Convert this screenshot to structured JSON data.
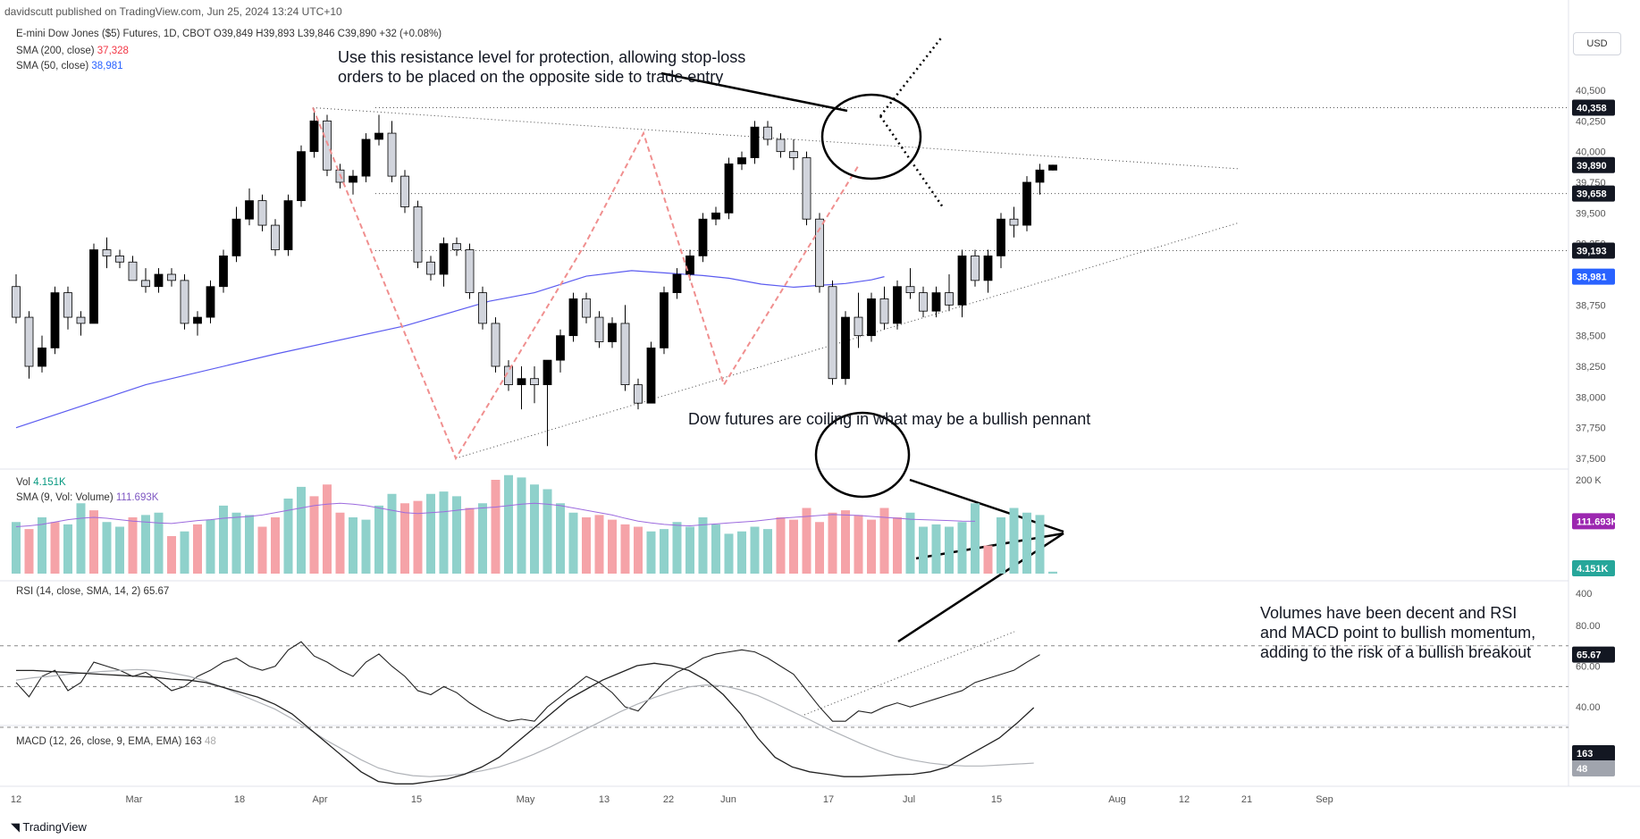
{
  "header": {
    "publisher_line": "davidscutt published on TradingView.com, Jun 25, 2024 13:24 UTC+10"
  },
  "legend": {
    "symbol": "E-mini Dow Jones ($5) Futures, 1D, CBOT",
    "ohlc": "O39,849 H39,893 L39,846 C39,890 +32 (+0.08%)",
    "sma200_label": "SMA (200, close)",
    "sma200_value": "37,328",
    "sma50_label": "SMA (50, close)",
    "sma50_value": "38,981",
    "vol_label": "Vol",
    "vol_value": "4.151K",
    "vol_sma_label": "SMA (9, Vol: Volume)",
    "vol_sma_value": "111.693K",
    "rsi_label": "RSI (14, close, SMA, 14, 2)",
    "rsi_value": "65.67",
    "macd_label": "MACD (12, 26, close, 9, EMA, EMA)",
    "macd_value": "163",
    "macd_signal_value": "48"
  },
  "currency": "USD",
  "branding": "TradingView",
  "annotations": {
    "resistance": [
      "Use this resistance level for protection, allowing stop-loss",
      "orders to be placed on the opposite side to trade entry"
    ],
    "pennant": "Dow futures are coiling in what may be a bullish pennant",
    "momentum": [
      "Volumes have been decent and RSI",
      "and MACD point to bullish momentum,",
      "adding to the risk of a bullish breakout"
    ]
  },
  "colors": {
    "up": "#000000",
    "down_fill": "#d1d4dc",
    "sma50": "#5b5bf0",
    "vol_up": "#8fd1cb",
    "vol_down": "#f5a3a8",
    "vol_sma": "#9c6ade",
    "dashed_pattern": "#f08f8f",
    "badge_dark": "#131722",
    "badge_blue": "#2962ff",
    "badge_purple": "#9c27b0",
    "badge_teal": "#26a69a",
    "badge_gray": "#a0a4ad"
  },
  "chart_data": {
    "type": "candlestick",
    "title": "E-mini Dow Jones ($5) Futures, 1D, CBOT",
    "x_ticks": [
      "12",
      "Mar",
      "18",
      "Apr",
      "15",
      "May",
      "13",
      "22",
      "Jun",
      "17",
      "Jul",
      "15",
      "Aug",
      "12",
      "21",
      "Sep"
    ],
    "price_ticks": [
      "40,500",
      "40,250",
      "40,000",
      "39,750",
      "39,500",
      "39,250",
      "38,750",
      "38,500",
      "38,250",
      "38,000",
      "37,750",
      "37,500"
    ],
    "ylim": [
      37450,
      40650
    ],
    "price_labels": [
      {
        "value": 40358,
        "text": "40,358",
        "style": "dark"
      },
      {
        "value": 39890,
        "text": "39,890",
        "style": "dark"
      },
      {
        "value": 39658,
        "text": "39,658",
        "style": "dark"
      },
      {
        "value": 39193,
        "text": "39,193",
        "style": "dark"
      },
      {
        "value": 38981,
        "text": "38,981",
        "style": "blue"
      }
    ],
    "candles": [
      [
        38900,
        39000,
        38600,
        38650
      ],
      [
        38650,
        38700,
        38150,
        38250
      ],
      [
        38250,
        38500,
        38200,
        38400
      ],
      [
        38400,
        38900,
        38350,
        38850
      ],
      [
        38850,
        38900,
        38550,
        38650
      ],
      [
        38650,
        38700,
        38500,
        38600
      ],
      [
        38600,
        39250,
        38600,
        39200
      ],
      [
        39200,
        39300,
        39050,
        39150
      ],
      [
        39150,
        39200,
        39050,
        39100
      ],
      [
        39100,
        39150,
        38950,
        38950
      ],
      [
        38950,
        39050,
        38850,
        38900
      ],
      [
        38900,
        39050,
        38850,
        39000
      ],
      [
        39000,
        39050,
        38900,
        38950
      ],
      [
        38950,
        39000,
        38550,
        38600
      ],
      [
        38600,
        38700,
        38500,
        38650
      ],
      [
        38650,
        38950,
        38600,
        38900
      ],
      [
        38900,
        39200,
        38850,
        39150
      ],
      [
        39150,
        39550,
        39100,
        39450
      ],
      [
        39450,
        39700,
        39400,
        39600
      ],
      [
        39600,
        39650,
        39350,
        39400
      ],
      [
        39400,
        39450,
        39150,
        39200
      ],
      [
        39200,
        39650,
        39150,
        39600
      ],
      [
        39600,
        40050,
        39550,
        40000
      ],
      [
        40000,
        40350,
        39950,
        40250
      ],
      [
        40250,
        40300,
        39800,
        39850
      ],
      [
        39850,
        39900,
        39700,
        39750
      ],
      [
        39750,
        39850,
        39650,
        39800
      ],
      [
        39800,
        40150,
        39750,
        40100
      ],
      [
        40100,
        40300,
        40050,
        40150
      ],
      [
        40150,
        40250,
        39750,
        39800
      ],
      [
        39800,
        39850,
        39500,
        39550
      ],
      [
        39550,
        39600,
        39050,
        39100
      ],
      [
        39100,
        39150,
        38950,
        39000
      ],
      [
        39000,
        39300,
        38900,
        39250
      ],
      [
        39250,
        39300,
        39150,
        39200
      ],
      [
        39200,
        39250,
        38800,
        38850
      ],
      [
        38850,
        38900,
        38550,
        38600
      ],
      [
        38600,
        38650,
        38200,
        38250
      ],
      [
        38250,
        38300,
        38050,
        38100
      ],
      [
        38100,
        38250,
        37900,
        38150
      ],
      [
        38150,
        38250,
        37950,
        38100
      ],
      [
        38100,
        38300,
        37600,
        38300
      ],
      [
        38300,
        38550,
        38200,
        38500
      ],
      [
        38500,
        38850,
        38450,
        38800
      ],
      [
        38800,
        38850,
        38600,
        38650
      ],
      [
        38650,
        38700,
        38400,
        38450
      ],
      [
        38450,
        38650,
        38400,
        38600
      ],
      [
        38600,
        38750,
        38050,
        38100
      ],
      [
        38100,
        38150,
        37900,
        37950
      ],
      [
        37950,
        38450,
        37950,
        38400
      ],
      [
        38400,
        38900,
        38350,
        38850
      ],
      [
        38850,
        39050,
        38800,
        39000
      ],
      [
        39000,
        39200,
        38950,
        39150
      ],
      [
        39150,
        39500,
        39100,
        39450
      ],
      [
        39450,
        39550,
        39400,
        39500
      ],
      [
        39500,
        39950,
        39450,
        39900
      ],
      [
        39900,
        40000,
        39850,
        39950
      ],
      [
        39950,
        40250,
        39900,
        40200
      ],
      [
        40200,
        40250,
        40050,
        40100
      ],
      [
        40100,
        40150,
        39950,
        40000
      ],
      [
        40000,
        40100,
        39850,
        39950
      ],
      [
        39950,
        40000,
        39400,
        39450
      ],
      [
        39450,
        39500,
        38850,
        38900
      ],
      [
        38900,
        38950,
        38100,
        38150
      ],
      [
        38150,
        38700,
        38100,
        38650
      ],
      [
        38650,
        38850,
        38400,
        38500
      ],
      [
        38500,
        38850,
        38450,
        38800
      ],
      [
        38800,
        38900,
        38550,
        38600
      ],
      [
        38600,
        38950,
        38550,
        38900
      ],
      [
        38900,
        39050,
        38800,
        38850
      ],
      [
        38850,
        38900,
        38650,
        38700
      ],
      [
        38700,
        38900,
        38650,
        38850
      ],
      [
        38850,
        39000,
        38700,
        38750
      ],
      [
        38750,
        39200,
        38650,
        39150
      ],
      [
        39150,
        39200,
        38900,
        38950
      ],
      [
        38950,
        39200,
        38850,
        39150
      ],
      [
        39150,
        39500,
        39050,
        39450
      ],
      [
        39450,
        39550,
        39300,
        39400
      ],
      [
        39400,
        39800,
        39350,
        39750
      ],
      [
        39750,
        39900,
        39650,
        39850
      ],
      [
        39849,
        39893,
        39846,
        39890
      ]
    ],
    "sma50": [
      [
        0,
        37750
      ],
      [
        20,
        38100
      ],
      [
        40,
        38350
      ],
      [
        60,
        38580
      ],
      [
        73,
        38780
      ],
      [
        80,
        38850
      ],
      [
        88,
        38985
      ],
      [
        95,
        39030
      ],
      [
        100,
        39012
      ],
      [
        106,
        38990
      ],
      [
        110,
        38968
      ],
      [
        115,
        38920
      ],
      [
        120,
        38895
      ],
      [
        124,
        38910
      ],
      [
        128,
        38925
      ],
      [
        132,
        38955
      ],
      [
        134,
        38981
      ]
    ],
    "pennant_upper": {
      "from": [
        350,
        40358
      ],
      "to": [
        1386,
        39860
      ]
    },
    "pennant_lower": {
      "from": [
        510,
        37500
      ],
      "to": [
        1386,
        39420
      ]
    },
    "volume": {
      "ticks": [
        "200 K"
      ],
      "ylim": [
        0,
        230
      ],
      "bars": [
        110,
        95,
        120,
        110,
        105,
        150,
        135,
        110,
        100,
        120,
        125,
        130,
        80,
        90,
        105,
        115,
        145,
        130,
        125,
        100,
        120,
        160,
        185,
        165,
        190,
        130,
        120,
        115,
        145,
        170,
        150,
        155,
        170,
        175,
        165,
        140,
        150,
        200,
        210,
        205,
        190,
        180,
        150,
        130,
        120,
        125,
        115,
        105,
        100,
        90,
        95,
        110,
        100,
        120,
        105,
        85,
        90,
        100,
        95,
        120,
        115,
        140,
        110,
        130,
        135,
        125,
        115,
        140,
        120,
        130,
        100,
        105,
        100,
        110,
        150,
        60,
        120,
        140,
        130,
        125,
        4.151
      ],
      "down": [
        1,
        3,
        6,
        9,
        12,
        14,
        19,
        20,
        23,
        24,
        25,
        30,
        31,
        35,
        37,
        44,
        45,
        46,
        47,
        48,
        59,
        60,
        61,
        62,
        63,
        64,
        65,
        66,
        67,
        68,
        75
      ],
      "sma9": [
        100,
        102,
        105,
        110,
        115,
        118,
        120,
        118,
        115,
        112,
        110,
        108,
        107,
        110,
        113,
        115,
        118,
        120,
        122,
        125,
        130,
        135,
        140,
        145,
        148,
        150,
        148,
        145,
        140,
        135,
        130,
        128,
        130,
        132,
        135,
        138,
        140,
        142,
        145,
        148,
        150,
        148,
        145,
        140,
        135,
        130,
        125,
        118,
        112,
        108,
        105,
        103,
        102,
        104,
        106,
        108,
        110,
        112,
        115,
        118,
        120,
        122,
        124,
        126,
        125,
        124,
        122,
        120,
        118,
        116,
        115,
        114,
        113,
        112,
        111.693
      ]
    },
    "vol_labels": [
      {
        "value": 111.693,
        "text": "111.693K",
        "style": "purple"
      },
      {
        "value": 4.151,
        "text": "4.151K",
        "style": "teal"
      }
    ],
    "rsi": {
      "ticks": [
        "80.00",
        "60.00",
        "40.00"
      ],
      "ylim": [
        25,
        90
      ],
      "bands": [
        70,
        50,
        30
      ],
      "values": [
        52,
        45,
        55,
        58,
        48,
        52,
        62,
        60,
        58,
        55,
        57,
        53,
        48,
        50,
        55,
        58,
        62,
        64,
        60,
        58,
        60,
        68,
        72,
        65,
        62,
        58,
        55,
        62,
        66,
        60,
        55,
        48,
        46,
        50,
        47,
        42,
        38,
        35,
        33,
        34,
        33,
        40,
        45,
        50,
        55,
        52,
        47,
        40,
        38,
        45,
        52,
        57,
        60,
        64,
        66,
        67,
        68,
        67,
        64,
        60,
        56,
        48,
        40,
        33,
        33,
        38,
        37,
        40,
        42,
        40,
        42,
        44,
        46,
        48,
        52,
        54,
        56,
        58,
        62,
        65.67
      ],
      "trendline": {
        "from": [
          60,
          28
        ],
        "to": [
          79,
          70
        ]
      }
    },
    "rsi_label": {
      "value": 65.67,
      "text": "65.67",
      "style": "dark"
    },
    "macd": {
      "ticks": [
        "400"
      ],
      "ylim": [
        -230,
        430
      ],
      "macd": [
        240,
        240,
        238,
        236,
        234,
        232,
        230,
        228,
        226,
        222,
        220,
        215,
        205,
        195,
        185,
        170,
        150,
        120,
        90,
        60,
        30,
        10,
        5,
        5,
        10,
        15,
        25,
        40,
        60,
        90,
        120,
        150,
        180,
        200,
        220,
        235,
        250,
        255,
        250,
        240,
        220,
        190,
        150,
        100,
        60,
        40,
        30,
        25,
        20,
        20,
        22,
        24,
        25,
        30,
        40,
        60,
        80,
        100,
        130,
        163
      ],
      "signal": [
        220,
        225,
        228,
        232,
        235,
        238,
        240,
        242,
        240,
        235,
        228,
        218,
        205,
        190,
        175,
        160,
        140,
        118,
        95,
        75,
        55,
        38,
        28,
        22,
        20,
        22,
        26,
        32,
        40,
        52,
        66,
        82,
        100,
        118,
        136,
        154,
        170,
        184,
        196,
        206,
        210,
        208,
        200,
        188,
        172,
        155,
        138,
        120,
        104,
        88,
        74,
        62,
        54,
        48,
        44,
        42,
        42,
        44,
        46,
        48
      ]
    },
    "macd_labels": [
      {
        "value": 163,
        "text": "163",
        "style": "dark"
      },
      {
        "value": 48,
        "text": "48",
        "style": "gray"
      }
    ]
  }
}
